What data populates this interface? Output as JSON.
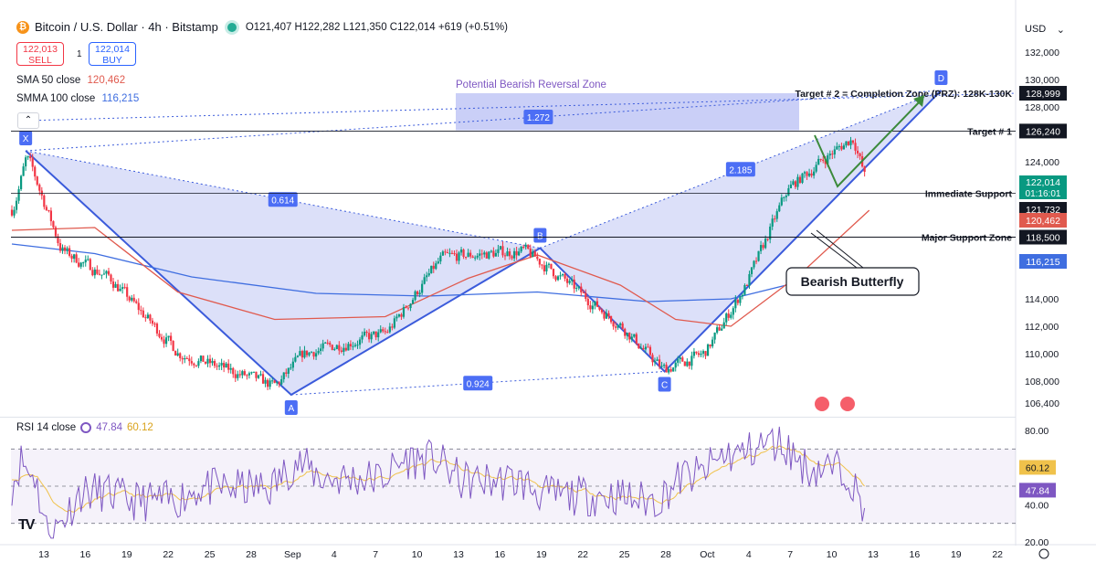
{
  "header": {
    "symbol": "Bitcoin / U.S. Dollar · 4h · Bitstamp",
    "ohlc": "O121,407 H122,282 L121,350 C122,014 +619 (+0.51%)"
  },
  "trade": {
    "sell_price": "122,013",
    "sell_label": "SELL",
    "spread": "1",
    "buy_price": "122,014",
    "buy_label": "BUY"
  },
  "indicators": {
    "sma_label": "SMA 50 close",
    "sma_value": "120,462",
    "smma_label": "SMMA 100 close",
    "smma_value": "116,215",
    "rsi_label": "RSI 14 close",
    "rsi_value": "47.84",
    "rsi_ma_value": "60.12"
  },
  "currency": "USD",
  "colors": {
    "up": "#089981",
    "down": "#f23645",
    "sma": "#e05a4e",
    "smma": "#3f6ee0",
    "pattern": "#3b5bdb",
    "zone": "#9ea8f0",
    "rsi": "#7e57c2",
    "rsi_ma": "#f0c24b",
    "arrow": "#3b8a3b"
  },
  "chart_data": {
    "type": "candlestick",
    "title": "Bitcoin / U.S. Dollar · 4h · Bitstamp",
    "y_ticks": [
      106400,
      108000,
      110000,
      112000,
      114000,
      116000,
      118000,
      120000,
      122000,
      124000,
      126000,
      128000,
      130000,
      132000
    ],
    "y_tick_labels": [
      "106,400",
      "108,000",
      "110,000",
      "112,000",
      "114,000",
      "",
      "",
      "",
      "",
      "124,000",
      "",
      "128,000",
      "130,000",
      "132,000"
    ],
    "x_tick_labels": [
      "13",
      "16",
      "19",
      "22",
      "25",
      "28",
      "Sep",
      "4",
      "7",
      "10",
      "13",
      "16",
      "19",
      "22",
      "25",
      "28",
      "Oct",
      "4",
      "7",
      "10",
      "13",
      "16",
      "19",
      "22"
    ],
    "anchors": [
      {
        "d": 0,
        "p": 120500
      },
      {
        "d": 1.0,
        "p": 124500
      },
      {
        "d": 3.5,
        "p": 117500
      },
      {
        "d": 7,
        "p": 115500
      },
      {
        "d": 12,
        "p": 110000
      },
      {
        "d": 19,
        "p": 107600
      },
      {
        "d": 21,
        "p": 110000
      },
      {
        "d": 27,
        "p": 111500
      },
      {
        "d": 31,
        "p": 117000
      },
      {
        "d": 37,
        "p": 117500
      },
      {
        "d": 39,
        "p": 116000
      },
      {
        "d": 44,
        "p": 112000
      },
      {
        "d": 47,
        "p": 108800
      },
      {
        "d": 50,
        "p": 110000
      },
      {
        "d": 53,
        "p": 115000
      },
      {
        "d": 56,
        "p": 122000
      },
      {
        "d": 59,
        "p": 124500
      },
      {
        "d": 60.8,
        "p": 125800
      },
      {
        "d": 61.8,
        "p": 122000
      }
    ],
    "sma50": [
      [
        0,
        119000
      ],
      [
        6,
        119200
      ],
      [
        12,
        114500
      ],
      [
        19,
        112500
      ],
      [
        27,
        112700
      ],
      [
        33,
        115500
      ],
      [
        38,
        117200
      ],
      [
        44,
        115000
      ],
      [
        48,
        112500
      ],
      [
        52,
        112000
      ],
      [
        57,
        115800
      ],
      [
        62,
        120462
      ]
    ],
    "smma100": [
      [
        0,
        118000
      ],
      [
        6,
        117300
      ],
      [
        13,
        115600
      ],
      [
        22,
        114400
      ],
      [
        30,
        114200
      ],
      [
        38,
        114500
      ],
      [
        46,
        113800
      ],
      [
        52,
        114000
      ],
      [
        58,
        115500
      ],
      [
        62,
        116215
      ]
    ],
    "harmonic": {
      "X": {
        "label": "X",
        "d": 1.0,
        "p": 124800
      },
      "A": {
        "label": "A",
        "d": 20.2,
        "p": 107000
      },
      "B": {
        "label": "B",
        "d": 38.2,
        "p": 117700
      },
      "C": {
        "label": "C",
        "d": 47.2,
        "p": 108700
      },
      "D": {
        "label": "D",
        "d": 67.2,
        "p": 129200
      },
      "ratios": [
        {
          "label": "0.614"
        },
        {
          "label": "0.924"
        },
        {
          "label": "2.185"
        },
        {
          "label": "1.272"
        }
      ]
    },
    "levels": [
      {
        "name": "target2",
        "label": "Target # 2 = Completion Zone (PRZ): 128K-130K",
        "price": 128999,
        "tag": "128,999"
      },
      {
        "name": "target1",
        "label": "Target # 1",
        "price": 126240,
        "tag": "126,240"
      },
      {
        "name": "immediate-support",
        "label": "Immediate Support",
        "price": 121732,
        "tag": "121,732"
      },
      {
        "name": "major-support",
        "label": "Major Support Zone",
        "price": 118500,
        "tag": "118,500"
      }
    ],
    "zone": {
      "label": "Potential Bearish Reversal Zone",
      "from": 126300,
      "to": 129000
    },
    "pattern_name": "Bearish Butterfly",
    "price_tags": {
      "last": "122,014",
      "countdown": "01:16:01",
      "sma": "120,462",
      "smma": "116,215"
    },
    "rsi": {
      "y_tick_labels": [
        "80.00",
        "40.00",
        "20.00"
      ],
      "levels": [
        70,
        50,
        30
      ],
      "value": 47.84,
      "ma_value": 60.12
    }
  }
}
